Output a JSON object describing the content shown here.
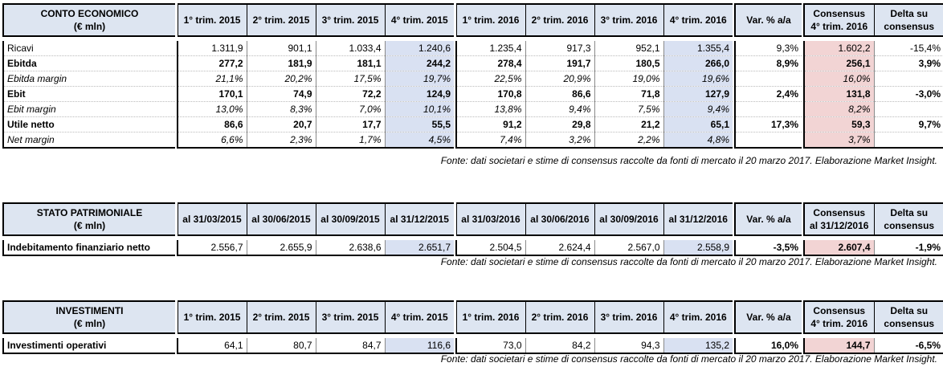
{
  "tables": [
    {
      "title": "CONTO ECONOMICO",
      "unit": "(€ mln)",
      "cols2015": [
        "1° trim. 2015",
        "2° trim. 2015",
        "3° trim. 2015",
        "4° trim. 2015"
      ],
      "cols2016": [
        "1° trim. 2016",
        "2° trim. 2016",
        "3° trim. 2016",
        "4° trim. 2016"
      ],
      "var": "Var. % a/a",
      "cons1": "Consensus",
      "cons2": "4° trim. 2016",
      "delta1": "Delta su",
      "delta2": "consensus",
      "rows": [
        {
          "label": "Ricavi",
          "style": "normal",
          "v2015": [
            "1.311,9",
            "901,1",
            "1.033,4",
            "1.240,6"
          ],
          "v2016": [
            "1.235,4",
            "917,3",
            "952,1",
            "1.355,4"
          ],
          "var": "9,3%",
          "cons": "1.602,2",
          "delta": "-15,4%"
        },
        {
          "label": "Ebitda",
          "style": "bold",
          "v2015": [
            "277,2",
            "181,9",
            "181,1",
            "244,2"
          ],
          "v2016": [
            "278,4",
            "191,7",
            "180,5",
            "266,0"
          ],
          "var": "8,9%",
          "cons": "256,1",
          "delta": "3,9%"
        },
        {
          "label": "Ebitda margin",
          "style": "ital",
          "v2015": [
            "21,1%",
            "20,2%",
            "17,5%",
            "19,7%"
          ],
          "v2016": [
            "22,5%",
            "20,9%",
            "19,0%",
            "19,6%"
          ],
          "var": "",
          "cons": "16,0%",
          "delta": ""
        },
        {
          "label": "Ebit",
          "style": "bold",
          "v2015": [
            "170,1",
            "74,9",
            "72,2",
            "124,9"
          ],
          "v2016": [
            "170,8",
            "86,6",
            "71,8",
            "127,9"
          ],
          "var": "2,4%",
          "cons": "131,8",
          "delta": "-3,0%"
        },
        {
          "label": "Ebit margin",
          "style": "ital",
          "v2015": [
            "13,0%",
            "8,3%",
            "7,0%",
            "10,1%"
          ],
          "v2016": [
            "13,8%",
            "9,4%",
            "7,5%",
            "9,4%"
          ],
          "var": "",
          "cons": "8,2%",
          "delta": ""
        },
        {
          "label": "Utile netto",
          "style": "bold",
          "v2015": [
            "86,6",
            "20,7",
            "17,7",
            "55,5"
          ],
          "v2016": [
            "91,2",
            "29,8",
            "21,2",
            "65,1"
          ],
          "var": "17,3%",
          "cons": "59,3",
          "delta": "9,7%"
        },
        {
          "label": "Net margin",
          "style": "ital",
          "v2015": [
            "6,6%",
            "2,3%",
            "1,7%",
            "4,5%"
          ],
          "v2016": [
            "7,4%",
            "3,2%",
            "2,2%",
            "4,8%"
          ],
          "var": "",
          "cons": "3,7%",
          "delta": ""
        }
      ],
      "source": "Fonte: dati societari e stime di consensus raccolte da fonti di mercato il 20 marzo 2017. Elaborazione Market Insight."
    },
    {
      "title": "STATO PATRIMONIALE",
      "unit": "(€ mln)",
      "cols2015": [
        "al 31/03/2015",
        "al 30/06/2015",
        "al 30/09/2015",
        "al 31/12/2015"
      ],
      "cols2016": [
        "al 31/03/2016",
        "al 30/06/2016",
        "al 30/09/2016",
        "al 31/12/2016"
      ],
      "var": "Var. % a/a",
      "cons1": "Consensus",
      "cons2": "al 31/12/2016",
      "delta1": "Delta su",
      "delta2": "consensus",
      "rows": [
        {
          "label": "Indebitamento finanziario netto",
          "style": "boldlabel",
          "v2015": [
            "2.556,7",
            "2.655,9",
            "2.638,6",
            "2.651,7"
          ],
          "v2016": [
            "2.504,5",
            "2.624,4",
            "2.567,0",
            "2.558,9"
          ],
          "var": "-3,5%",
          "cons": "2.607,4",
          "delta": "-1,9%"
        }
      ],
      "source": "Fonte: dati societari e stime di consensus raccolte da fonti di mercato il 20 marzo 2017. Elaborazione Market Insight."
    },
    {
      "title": "INVESTIMENTI",
      "unit": "(€ mln)",
      "cols2015": [
        "1° trim. 2015",
        "2° trim. 2015",
        "3° trim. 2015",
        "4° trim. 2015"
      ],
      "cols2016": [
        "1° trim. 2016",
        "2° trim. 2016",
        "3° trim. 2016",
        "4° trim. 2016"
      ],
      "var": "Var. % a/a",
      "cons1": "Consensus",
      "cons2": "4° trim. 2016",
      "delta1": "Delta su",
      "delta2": "consensus",
      "rows": [
        {
          "label": "Investimenti operativi",
          "style": "boldlabel",
          "v2015": [
            "64,1",
            "80,7",
            "84,7",
            "116,6"
          ],
          "v2016": [
            "73,0",
            "84,2",
            "94,3",
            "135,2"
          ],
          "var": "16,0%",
          "cons": "144,7",
          "delta": "-6,5%"
        }
      ],
      "source": "Fonte: dati societari e stime di consensus raccolte da fonti di mercato il 20 marzo 2017. Elaborazione Market Insight."
    }
  ]
}
